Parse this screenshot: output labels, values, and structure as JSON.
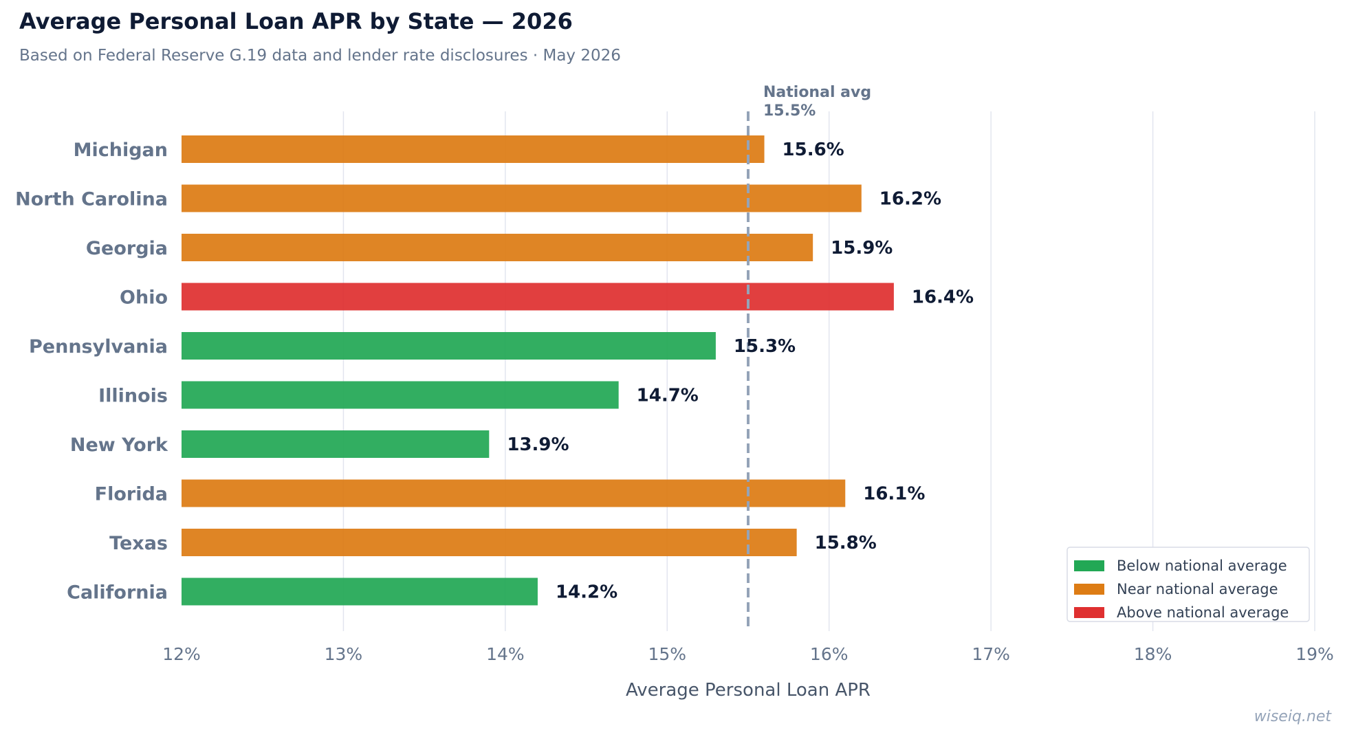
{
  "chart_data": {
    "type": "bar",
    "orientation": "horizontal",
    "title": "Average Personal Loan APR by State — 2026",
    "subtitle": "Based on Federal Reserve G.19 data and lender rate disclosures · May 2026",
    "xlabel": "Average Personal Loan APR",
    "ylabel": "",
    "xlim": [
      12,
      19
    ],
    "xticks": [
      12,
      13,
      14,
      15,
      16,
      17,
      18,
      19
    ],
    "xtick_labels": [
      "12%",
      "13%",
      "14%",
      "15%",
      "16%",
      "17%",
      "18%",
      "19%"
    ],
    "grid": "vertical",
    "categories": [
      "Michigan",
      "North Carolina",
      "Georgia",
      "Ohio",
      "Pennsylvania",
      "Illinois",
      "New York",
      "Florida",
      "Texas",
      "California"
    ],
    "values": [
      15.6,
      16.2,
      15.9,
      16.4,
      15.3,
      14.7,
      13.9,
      16.1,
      15.8,
      14.2
    ],
    "value_labels": [
      "15.6%",
      "16.2%",
      "15.9%",
      "16.4%",
      "15.3%",
      "14.7%",
      "13.9%",
      "16.1%",
      "15.8%",
      "14.2%"
    ],
    "groups": [
      "near",
      "near",
      "near",
      "above",
      "below",
      "below",
      "below",
      "near",
      "near",
      "below"
    ],
    "reference_line": {
      "value": 15.5,
      "label": "National avg",
      "value_label": "15.5%"
    },
    "legend": {
      "placement": "bottom-right",
      "entries": [
        {
          "key": "below",
          "label": "Below national average",
          "color": "#22a855"
        },
        {
          "key": "near",
          "label": "Near national average",
          "color": "#dd7c14"
        },
        {
          "key": "above",
          "label": "Above national average",
          "color": "#df3030"
        }
      ]
    }
  },
  "watermark": "wiseiq.net"
}
